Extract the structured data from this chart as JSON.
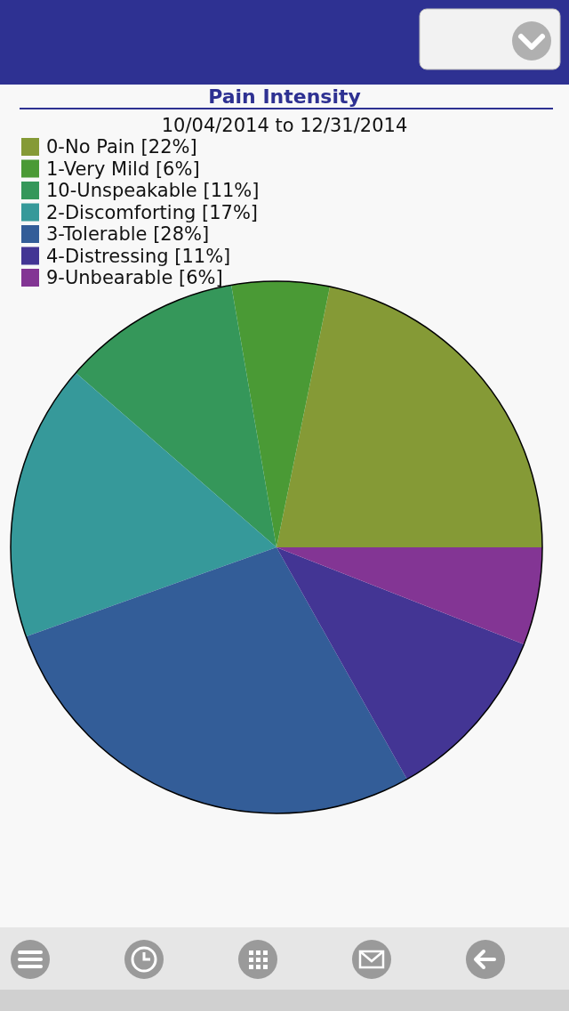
{
  "chart_data": {
    "type": "pie",
    "title": "Pain Intensity",
    "subtitle": "10/04/2014 to 12/31/2014",
    "categories": [
      "0-No Pain [22%]",
      "1-Very Mild [6%]",
      "10-Unspeakable [11%]",
      "2-Discomforting [17%]",
      "3-Tolerable [28%]",
      "4-Distressing [11%]",
      "9-Unbearable [6%]"
    ],
    "values": [
      22,
      6,
      11,
      17,
      28,
      11,
      6
    ],
    "colors": [
      "#859a36",
      "#4a9a35",
      "#35975a",
      "#36999a",
      "#335d98",
      "#433594",
      "#833594"
    ],
    "legend": "top left"
  }
}
